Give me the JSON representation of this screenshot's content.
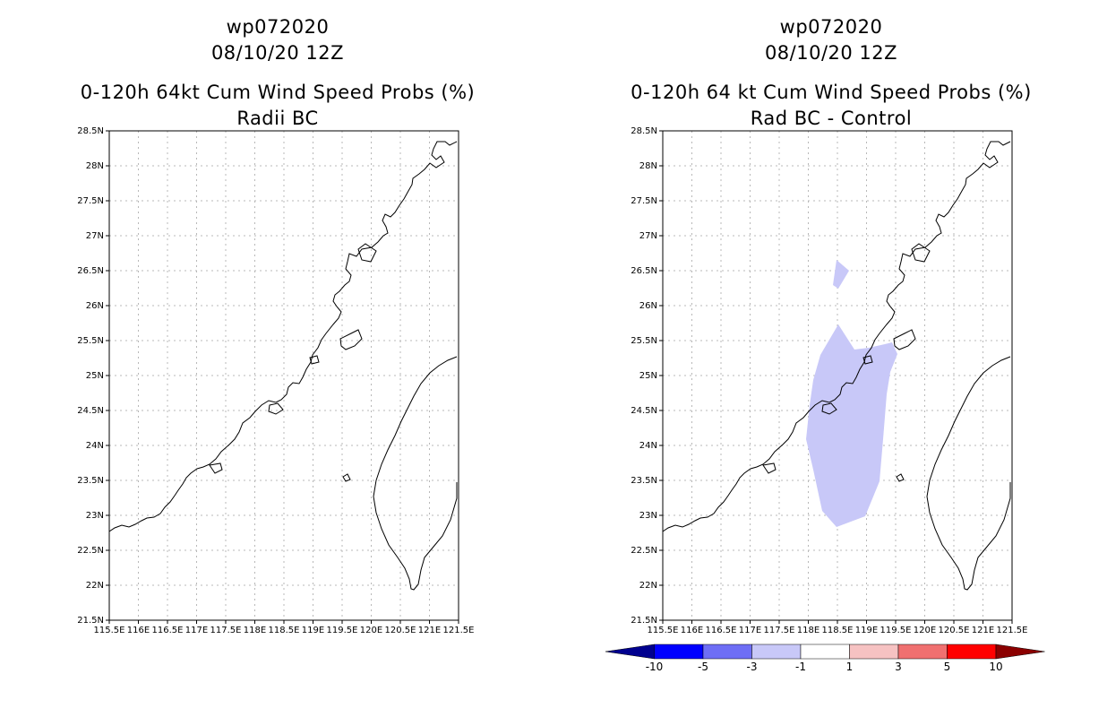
{
  "left_panel": {
    "storm": "wp072020",
    "date": "08/10/20 12Z",
    "title": "0-120h 64kt Cum Wind Speed Probs (%)",
    "subtitle": "Radii BC"
  },
  "right_panel": {
    "storm": "wp072020",
    "date": "08/10/20 12Z",
    "title": "0-120h 64 kt Cum Wind Speed Probs (%)",
    "subtitle": "Rad BC - Control"
  },
  "axes": {
    "lat_labels": [
      "28.5N",
      "28N",
      "27.5N",
      "27N",
      "26.5N",
      "26N",
      "25.5N",
      "25N",
      "24.5N",
      "24N",
      "23.5N",
      "23N",
      "22.5N",
      "22N",
      "21.5N"
    ],
    "lon_labels": [
      "115.5E",
      "116E",
      "116.5E",
      "117E",
      "117.5E",
      "118E",
      "118.5E",
      "119E",
      "119.5E",
      "120E",
      "120.5E",
      "121E",
      "121.5E"
    ]
  },
  "colorbar": {
    "labels": [
      "-10",
      "-5",
      "-3",
      "-1",
      "1",
      "3",
      "5",
      "10"
    ],
    "colors": [
      "#00008f",
      "#0000ff",
      "#6e6ef5",
      "#c8c8f8",
      "#ffffff",
      "#f6c2c2",
      "#f07070",
      "#ff0000",
      "#8b0000"
    ]
  },
  "colors": {
    "difference_fill": "#c8c8f8",
    "grid": "#b8b8b8"
  }
}
